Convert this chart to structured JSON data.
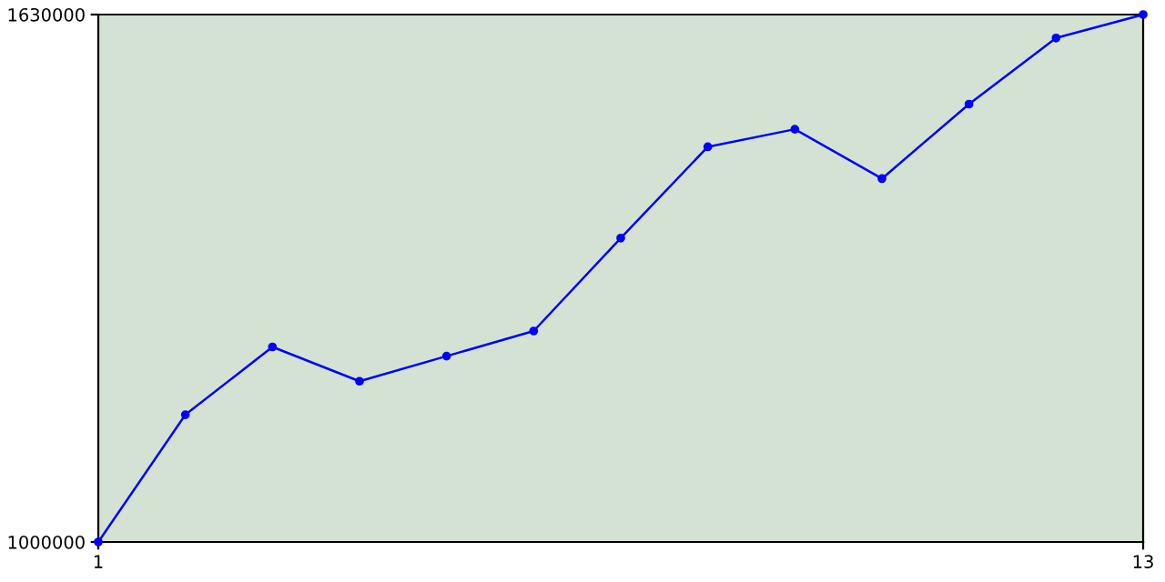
{
  "chart_data": {
    "type": "line",
    "x": [
      1,
      2,
      3,
      4,
      5,
      6,
      7,
      8,
      9,
      10,
      11,
      12,
      13
    ],
    "series": [
      {
        "color": "#0000ff",
        "values": [
          1000000,
          1152000,
          1233000,
          1192000,
          1222000,
          1252000,
          1363000,
          1472000,
          1493000,
          1434000,
          1523000,
          1602000,
          1630000
        ]
      }
    ],
    "xlim": [
      1,
      13
    ],
    "ylim": [
      1000000,
      1630000
    ],
    "xticks": [
      1,
      13
    ],
    "yticks": [
      1000000,
      1630000
    ],
    "grid": false,
    "legend": false,
    "marker": "circle",
    "line_style": "solid"
  }
}
